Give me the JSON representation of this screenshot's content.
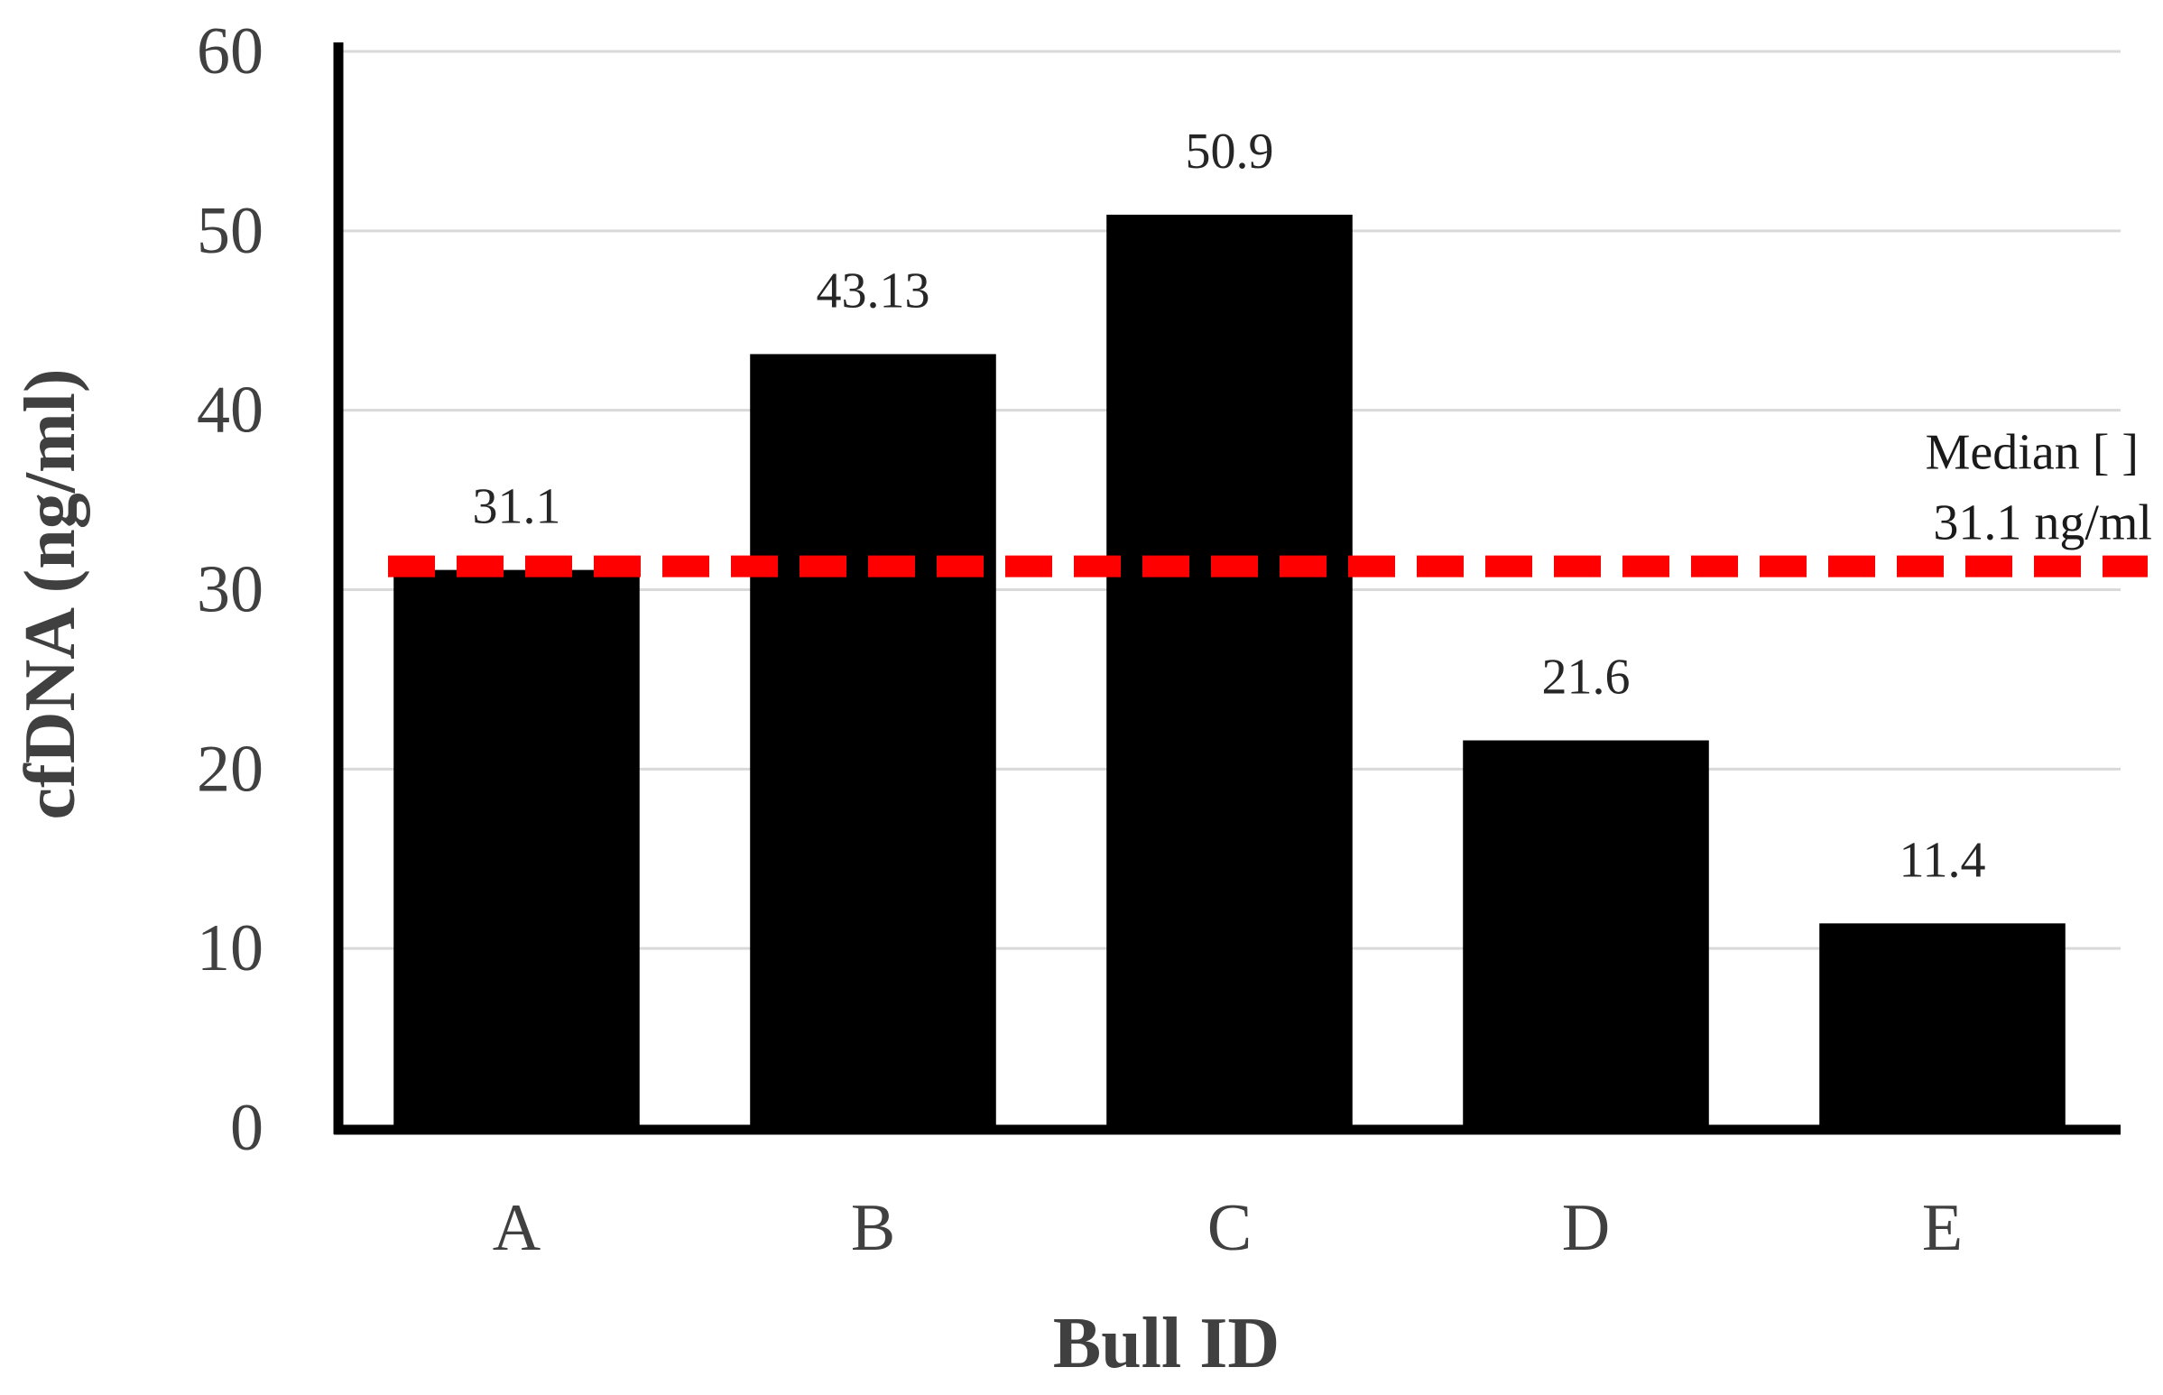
{
  "chart_data": {
    "type": "bar",
    "title": "",
    "xlabel": "Bull ID",
    "ylabel": "cfDNA (ng/ml)",
    "categories": [
      "A",
      "B",
      "C",
      "D",
      "E"
    ],
    "values": [
      31.1,
      43.13,
      50.9,
      21.6,
      11.4
    ],
    "data_labels": [
      "31.1",
      "43.13",
      "50.9",
      "21.6",
      "11.4"
    ],
    "ylim": [
      0,
      60
    ],
    "yticks": [
      0,
      10,
      20,
      30,
      40,
      50,
      60
    ],
    "grid": true,
    "bar_color": "#000000",
    "reference_line": {
      "value": 31.1,
      "label_line1": "Median [ ]",
      "label_line2": "31.1 ng/ml",
      "color": "#ff0000",
      "style": "dashed"
    }
  }
}
